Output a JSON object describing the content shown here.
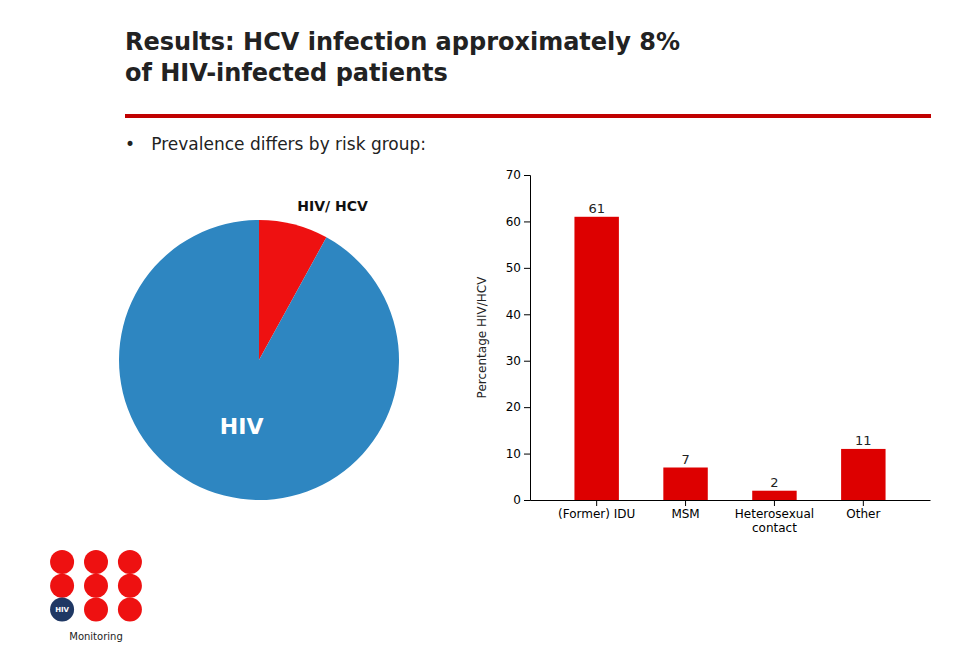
{
  "chart_data": [
    {
      "type": "pie",
      "title": "Results: HCV infection approximately 8%\nof HIV-infected patients",
      "subtitle": "•   Prevalence differs by risk group:",
      "values": [
        8,
        92
      ],
      "colors": [
        "#EE1111",
        "#2E86C1"
      ],
      "annotations": [
        {
          "text": "HIV"
        },
        {
          "text": "HIV/ HCV"
        },
        {
          "text": "HIV"
        },
        {
          "text": "Monitoring"
        }
      ]
    },
    {
      "type": "bar",
      "categories": [
        "(Former) IDU",
        "MSM",
        "Heterosexual\ncontact",
        "Other"
      ],
      "values": [
        61,
        7,
        2,
        11
      ],
      "color": "#DD0000",
      "ylabel": "Percentage HIV/HCV",
      "ylim": [
        0,
        70
      ],
      "yticks": [
        0,
        10,
        20,
        30,
        40,
        50,
        60,
        70
      ],
      "grid": false,
      "data_labels": true
    }
  ]
}
